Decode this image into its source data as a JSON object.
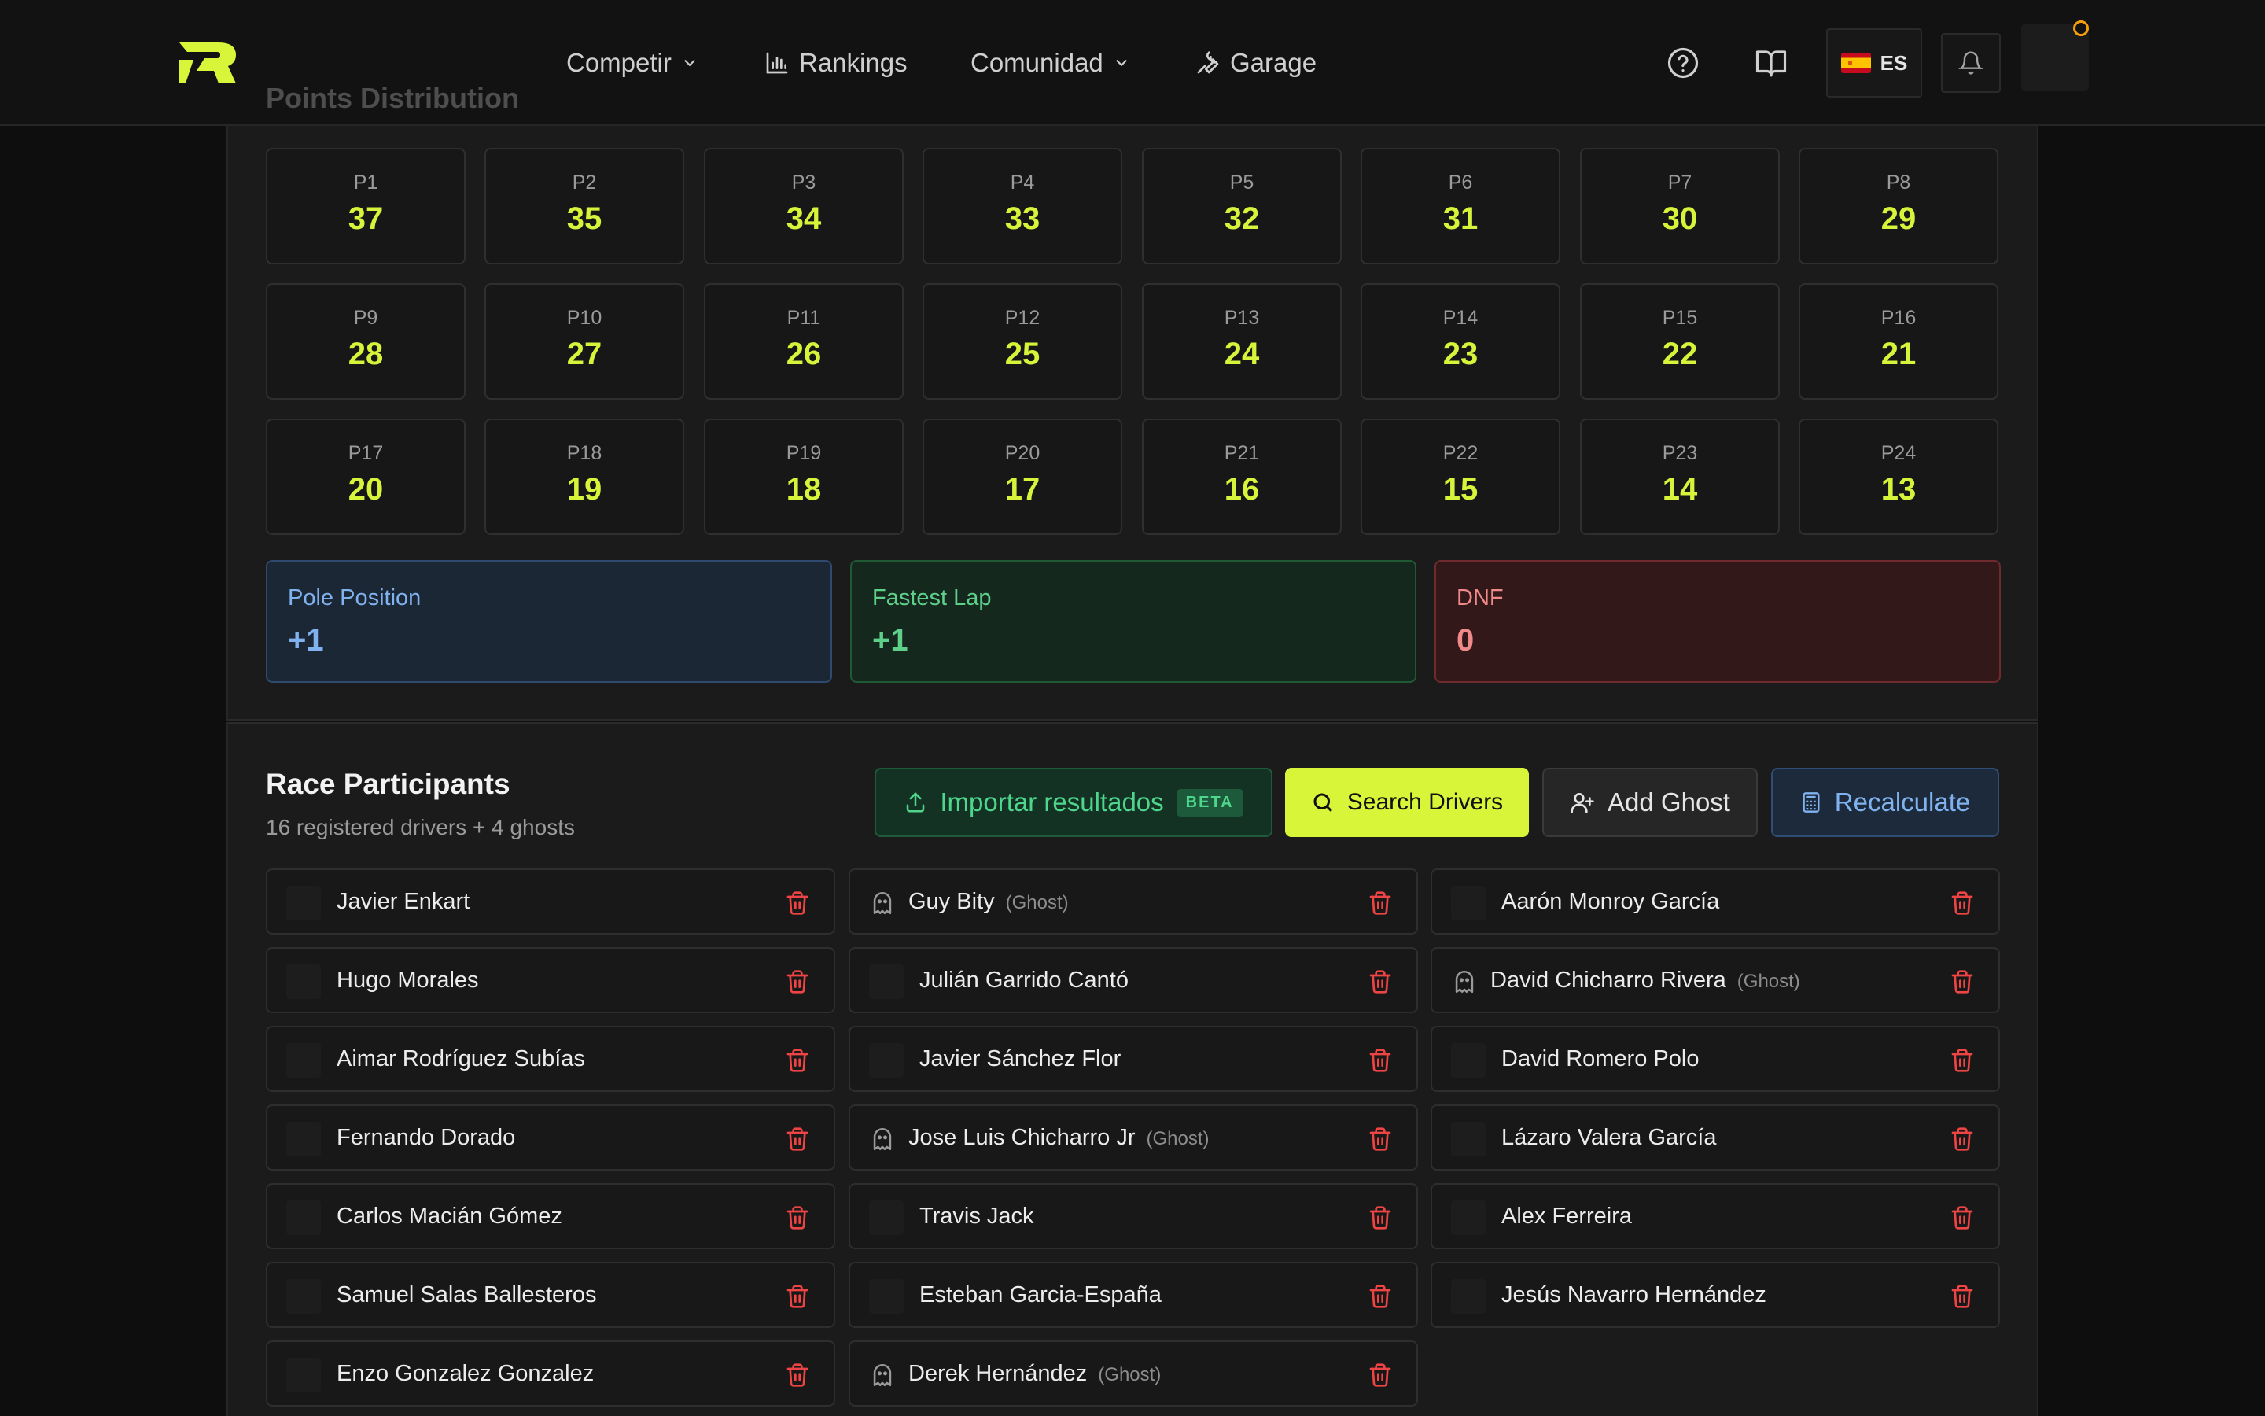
{
  "nav": {
    "items": [
      {
        "label": "Competir"
      },
      {
        "label": "Rankings"
      },
      {
        "label": "Comunidad"
      },
      {
        "label": "Garage"
      }
    ],
    "lang": "ES"
  },
  "points": {
    "title": "Points Distribution",
    "positions": [
      {
        "label": "P1",
        "value": "37"
      },
      {
        "label": "P2",
        "value": "35"
      },
      {
        "label": "P3",
        "value": "34"
      },
      {
        "label": "P4",
        "value": "33"
      },
      {
        "label": "P5",
        "value": "32"
      },
      {
        "label": "P6",
        "value": "31"
      },
      {
        "label": "P7",
        "value": "30"
      },
      {
        "label": "P8",
        "value": "29"
      },
      {
        "label": "P9",
        "value": "28"
      },
      {
        "label": "P10",
        "value": "27"
      },
      {
        "label": "P11",
        "value": "26"
      },
      {
        "label": "P12",
        "value": "25"
      },
      {
        "label": "P13",
        "value": "24"
      },
      {
        "label": "P14",
        "value": "23"
      },
      {
        "label": "P15",
        "value": "22"
      },
      {
        "label": "P16",
        "value": "21"
      },
      {
        "label": "P17",
        "value": "20"
      },
      {
        "label": "P18",
        "value": "19"
      },
      {
        "label": "P19",
        "value": "18"
      },
      {
        "label": "P20",
        "value": "17"
      },
      {
        "label": "P21",
        "value": "16"
      },
      {
        "label": "P22",
        "value": "15"
      },
      {
        "label": "P23",
        "value": "14"
      },
      {
        "label": "P24",
        "value": "13"
      }
    ],
    "bonuses": {
      "pole": {
        "label": "Pole Position",
        "value": "+1"
      },
      "fastest": {
        "label": "Fastest Lap",
        "value": "+1"
      },
      "dnf": {
        "label": "DNF",
        "value": "0"
      }
    }
  },
  "participants": {
    "title": "Race Participants",
    "subtitle": "16 registered drivers + 4 ghosts",
    "buttons": {
      "import": "Importar resultados",
      "beta": "BETA",
      "search": "Search Drivers",
      "ghost": "Add Ghost",
      "recalc": "Recalculate"
    },
    "ghost_tag": "(Ghost)",
    "columns": [
      [
        {
          "name": "Javier Enkart",
          "ghost": false
        },
        {
          "name": "Hugo Morales",
          "ghost": false
        },
        {
          "name": "Aimar Rodríguez Subías",
          "ghost": false
        },
        {
          "name": "Fernando Dorado",
          "ghost": false
        },
        {
          "name": "Carlos Macián Gómez",
          "ghost": false
        },
        {
          "name": "Samuel Salas Ballesteros",
          "ghost": false
        },
        {
          "name": "Enzo Gonzalez Gonzalez",
          "ghost": false
        }
      ],
      [
        {
          "name": "Guy Bity",
          "ghost": true
        },
        {
          "name": "Julián Garrido Cantó",
          "ghost": false
        },
        {
          "name": "Javier Sánchez Flor",
          "ghost": false
        },
        {
          "name": "Jose Luis Chicharro Jr",
          "ghost": true
        },
        {
          "name": "Travis Jack",
          "ghost": false
        },
        {
          "name": "Esteban Garcia-España",
          "ghost": false
        },
        {
          "name": "Derek Hernández",
          "ghost": true
        }
      ],
      [
        {
          "name": "Aarón Monroy García",
          "ghost": false
        },
        {
          "name": "David Chicharro Rivera",
          "ghost": true
        },
        {
          "name": "David Romero Polo",
          "ghost": false
        },
        {
          "name": "Lázaro Valera García",
          "ghost": false
        },
        {
          "name": "Alex Ferreira",
          "ghost": false
        },
        {
          "name": "Jesús Navarro Hernández",
          "ghost": false
        }
      ]
    ]
  },
  "colors": {
    "accent": "#d9f53a",
    "points_value": "#d7f33a",
    "danger": "#ef4444",
    "pole": "#7fb2ee",
    "fastest": "#5fd08a",
    "dnf": "#f08a8a"
  }
}
